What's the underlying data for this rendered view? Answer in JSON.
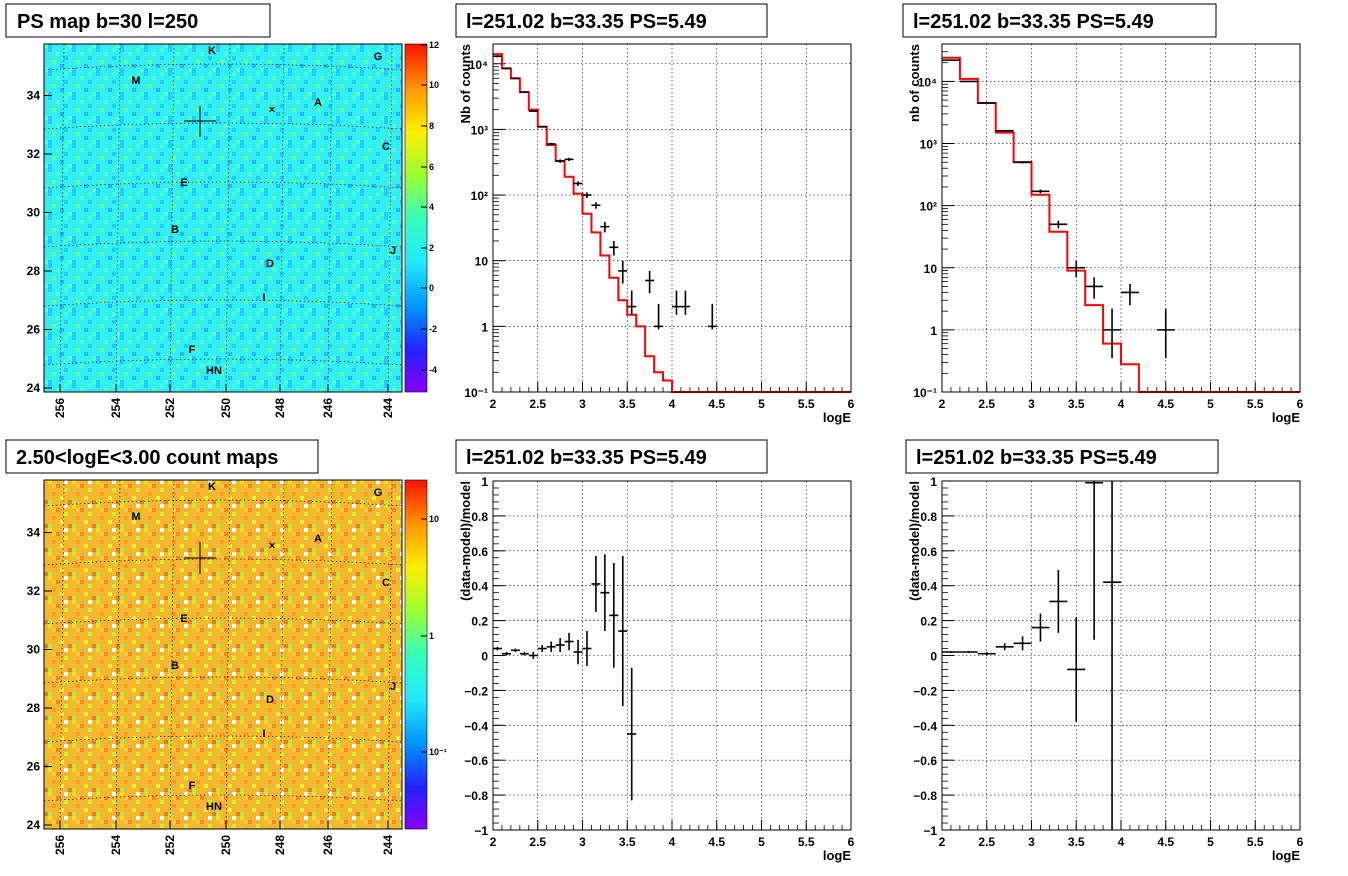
{
  "chart_data": [
    {
      "id": "ps-map",
      "type": "heatmap",
      "title": "PS map b=30 l=250",
      "x_ticks": [
        "256",
        "254",
        "252",
        "250",
        "248",
        "246",
        "244"
      ],
      "y_ticks": [
        "24",
        "26",
        "28",
        "30",
        "32",
        "34"
      ],
      "colorbar_ticks": [
        "12",
        "10",
        "8",
        "6",
        "4",
        "2",
        "0",
        "-2",
        "-4"
      ],
      "source_labels": [
        "K",
        "G",
        "M",
        "A",
        "C",
        "E",
        "B",
        "J",
        "D",
        "I",
        "F",
        "HN"
      ],
      "background_color": "#33ffee"
    },
    {
      "id": "spectrum-1",
      "type": "line",
      "title": "l=251.02 b=33.35 PS=5.49",
      "xlabel": "logE",
      "ylabel": "Nb of counts",
      "xlim": [
        2,
        6
      ],
      "ylim": [
        0.1,
        20000
      ],
      "yscale": "log",
      "x_ticks": [
        "2",
        "2.5",
        "3",
        "3.5",
        "4",
        "4.5",
        "5",
        "5.5",
        "6"
      ],
      "y_ticks": [
        "10⁻¹",
        "1",
        "10",
        "10²",
        "10³",
        "10⁴"
      ],
      "model_color": "#ff0000",
      "bin_width": 0.1,
      "model_edges": [
        2.0,
        2.1,
        2.2,
        2.3,
        2.4,
        2.5,
        2.6,
        2.7,
        2.8,
        2.9,
        3.0,
        3.1,
        3.2,
        3.3,
        3.4,
        3.5,
        3.6,
        3.7,
        3.8,
        3.9,
        4.0,
        4.1,
        6.0
      ],
      "model_values": [
        14000,
        8500,
        6000,
        3700,
        2000,
        1100,
        580,
        330,
        190,
        105,
        52,
        27,
        12,
        5.5,
        2.5,
        1.5,
        1.0,
        0.35,
        0.2,
        0.15,
        0.1,
        0.1
      ],
      "data_x": [
        2.05,
        2.15,
        2.25,
        2.35,
        2.45,
        2.55,
        2.65,
        2.75,
        2.85,
        2.95,
        3.05,
        3.15,
        3.25,
        3.35,
        3.45,
        3.55,
        3.75,
        3.85,
        4.05,
        4.15,
        4.45
      ],
      "data_y": [
        13000,
        8500,
        6000,
        3700,
        1900,
        1100,
        600,
        330,
        350,
        150,
        100,
        70,
        33,
        16,
        7,
        2,
        5,
        1,
        2,
        2,
        1
      ],
      "data_err_low": [
        12500,
        8300,
        5850,
        3600,
        1860,
        1070,
        575,
        310,
        330,
        138,
        90,
        62,
        27,
        12,
        4.5,
        1.5,
        3.2,
        0.9,
        1.5,
        1.5,
        0.9
      ],
      "data_err_high": [
        13500,
        8700,
        6150,
        3800,
        1950,
        1130,
        625,
        350,
        370,
        162,
        110,
        78,
        39,
        20,
        10,
        3.5,
        7,
        2.2,
        3.5,
        3.5,
        2.2
      ]
    },
    {
      "id": "spectrum-2",
      "type": "line",
      "title": "l=251.02 b=33.35 PS=5.49",
      "xlabel": "logE",
      "ylabel": "nb of counts",
      "xlim": [
        2,
        6
      ],
      "ylim": [
        0.1,
        40000
      ],
      "yscale": "log",
      "x_ticks": [
        "2",
        "2.5",
        "3",
        "3.5",
        "4",
        "4.5",
        "5",
        "5.5",
        "6"
      ],
      "y_ticks": [
        "10⁻¹",
        "1",
        "10",
        "10²",
        "10³",
        "10⁴"
      ],
      "model_color": "#ff0000",
      "bin_width": 0.2,
      "model_edges": [
        2.0,
        2.2,
        2.4,
        2.6,
        2.8,
        3.0,
        3.2,
        3.4,
        3.6,
        3.8,
        4.0,
        4.2,
        6.0
      ],
      "model_values": [
        24000,
        11000,
        4500,
        1500,
        500,
        150,
        38,
        9,
        2.5,
        0.6,
        0.28,
        0.1
      ],
      "data_x": [
        2.1,
        2.3,
        2.5,
        2.7,
        2.9,
        3.1,
        3.3,
        3.5,
        3.7,
        3.9,
        4.1,
        4.5
      ],
      "data_y": [
        22000,
        10000,
        4500,
        1600,
        500,
        170,
        50,
        10,
        5,
        1,
        4,
        1
      ],
      "data_err_low": [
        21800,
        9800,
        4400,
        1560,
        478,
        158,
        43,
        7,
        3.2,
        0.35,
        2.5,
        0.35
      ],
      "data_err_high": [
        22200,
        10200,
        4600,
        1640,
        522,
        182,
        57,
        13,
        7,
        2.2,
        5.5,
        2.2
      ]
    },
    {
      "id": "count-map",
      "type": "heatmap",
      "title": "2.50<logE<3.00 count maps",
      "x_ticks": [
        "256",
        "254",
        "252",
        "250",
        "248",
        "246",
        "244"
      ],
      "y_ticks": [
        "24",
        "26",
        "28",
        "30",
        "32",
        "34"
      ],
      "colorbar_ticks": [
        "10",
        "1",
        "10⁻¹"
      ],
      "source_labels": [
        "K",
        "G",
        "M",
        "A",
        "C",
        "E",
        "B",
        "J",
        "D",
        "I",
        "F",
        "HN"
      ],
      "background_color": "#f0b020"
    },
    {
      "id": "residual-1",
      "type": "scatter",
      "title": "l=251.02 b=33.35 PS=5.49",
      "xlabel": "logE",
      "ylabel": "(data-model)/model",
      "xlim": [
        2,
        6
      ],
      "ylim": [
        -1,
        1
      ],
      "x_ticks": [
        "2",
        "2.5",
        "3",
        "3.5",
        "4",
        "4.5",
        "5",
        "5.5",
        "6"
      ],
      "y_ticks": [
        "−1",
        "−0.8",
        "−0.6",
        "−0.4",
        "−0.2",
        "0",
        "0.2",
        "0.4",
        "0.6",
        "0.8",
        "1"
      ],
      "bin_width": 0.1,
      "x": [
        2.05,
        2.15,
        2.25,
        2.35,
        2.45,
        2.55,
        2.65,
        2.75,
        2.85,
        2.95,
        3.05,
        3.15,
        3.25,
        3.35,
        3.45,
        3.55
      ],
      "y": [
        0.04,
        0.01,
        0.03,
        0.01,
        0.0,
        0.04,
        0.05,
        0.06,
        0.08,
        0.02,
        0.04,
        0.41,
        0.36,
        0.23,
        0.14,
        -0.45
      ],
      "err": [
        0.01,
        0.01,
        0.01,
        0.01,
        0.02,
        0.02,
        0.03,
        0.04,
        0.05,
        0.07,
        0.1,
        0.16,
        0.22,
        0.3,
        0.43,
        0.38
      ]
    },
    {
      "id": "residual-2",
      "type": "scatter",
      "title": "l=251.02 b=33.35 PS=5.49",
      "xlabel": "logE",
      "ylabel": "(data-model)/model",
      "xlim": [
        2,
        6
      ],
      "ylim": [
        -1,
        1
      ],
      "x_ticks": [
        "2",
        "2.5",
        "3",
        "3.5",
        "4",
        "4.5",
        "5",
        "5.5",
        "6"
      ],
      "y_ticks": [
        "−1",
        "−0.8",
        "−0.6",
        "−0.4",
        "−0.2",
        "0",
        "0.2",
        "0.4",
        "0.6",
        "0.8",
        "1"
      ],
      "bin_width": 0.2,
      "x": [
        2.1,
        2.3,
        2.5,
        2.7,
        2.9,
        3.1,
        3.3,
        3.5,
        3.7,
        3.9
      ],
      "y": [
        0.02,
        0.02,
        0.01,
        0.05,
        0.07,
        0.16,
        0.31,
        -0.08,
        0.99,
        0.42
      ],
      "err": [
        0.005,
        0.005,
        0.01,
        0.02,
        0.04,
        0.08,
        0.18,
        0.3,
        0.9,
        1.5
      ]
    }
  ]
}
